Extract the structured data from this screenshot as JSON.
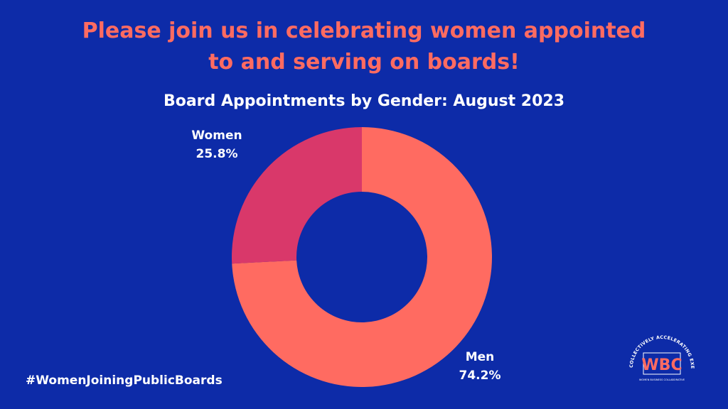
{
  "headline": {
    "line1": "Please join us in celebrating women appointed",
    "line2": "to and serving on boards!"
  },
  "chart_data": {
    "type": "pie",
    "title": "Board Appointments by Gender: August 2023",
    "slices": [
      {
        "label": "Men",
        "value": 74.2,
        "value_label": "74.2%",
        "color": "#ff6b61"
      },
      {
        "label": "Women",
        "value": 25.8,
        "value_label": "25.8%",
        "color": "#d9386a"
      }
    ],
    "donut": true
  },
  "hashtag": "#WomenJoiningPublicBoards",
  "logo": {
    "monogram": "WBC",
    "arc_text": "COLLECTIVELY ACCELERATING EXECUTIVE WOMEN",
    "subtitle": "WOMEN BUSINESS COLLABORATIVE"
  },
  "colors": {
    "background": "#0d2ba8",
    "accent": "#ff6b61",
    "secondary": "#d9386a"
  }
}
